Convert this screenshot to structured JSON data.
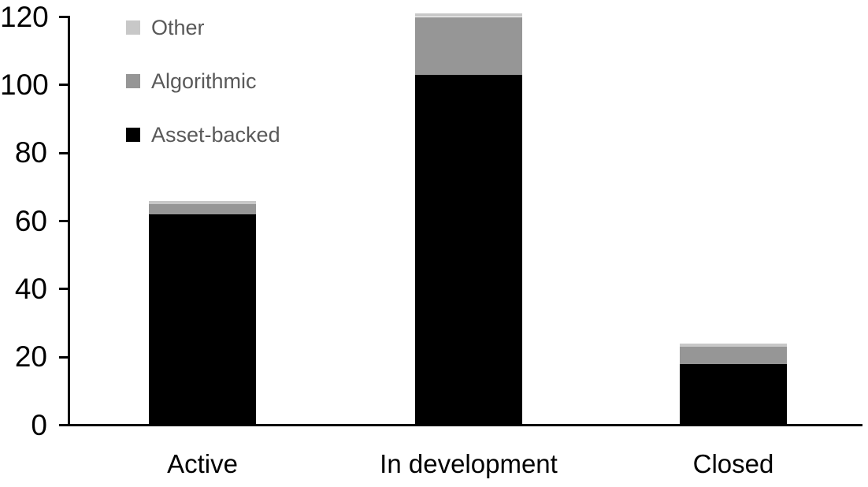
{
  "chart_data": {
    "type": "bar",
    "stacked": true,
    "title": "",
    "xlabel": "",
    "ylabel": "",
    "categories": [
      "Active",
      "In development",
      "Closed"
    ],
    "series": [
      {
        "name": "Asset-backed",
        "color": "#000000",
        "values": [
          62,
          103,
          18
        ]
      },
      {
        "name": "Algorithmic",
        "color": "#969696",
        "values": [
          3,
          17,
          5
        ]
      },
      {
        "name": "Other",
        "color": "#c8c8c8",
        "values": [
          1,
          1,
          1
        ]
      }
    ],
    "y_ticks": [
      0,
      20,
      40,
      60,
      80,
      100,
      120
    ],
    "ylim": [
      0,
      120
    ],
    "grid": false,
    "legend_position": "top-left",
    "legend_order": [
      "Other",
      "Algorithmic",
      "Asset-backed"
    ],
    "colors": {
      "axis": "#000000",
      "tick_label": "#000000",
      "category_label": "#000000",
      "legend_text": "#595959",
      "background": "#ffffff"
    }
  }
}
